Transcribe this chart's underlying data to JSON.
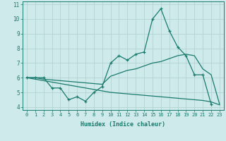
{
  "xlabel": "Humidex (Indice chaleur)",
  "x_values": [
    0,
    1,
    2,
    3,
    4,
    5,
    6,
    7,
    8,
    9,
    10,
    11,
    12,
    13,
    14,
    15,
    16,
    17,
    18,
    19,
    20,
    21,
    22,
    23
  ],
  "line1_y": [
    6.0,
    6.0,
    6.0,
    5.3,
    5.3,
    4.5,
    4.7,
    4.4,
    5.0,
    5.4,
    7.0,
    7.5,
    7.2,
    7.6,
    7.75,
    10.0,
    10.7,
    9.2,
    8.1,
    7.5,
    6.2,
    6.2,
    4.2,
    null
  ],
  "line2_y": [
    6.0,
    6.0,
    5.9,
    5.85,
    5.8,
    5.75,
    5.7,
    5.65,
    5.6,
    5.55,
    6.1,
    6.3,
    6.5,
    6.6,
    6.8,
    7.0,
    7.1,
    7.3,
    7.5,
    7.6,
    7.5,
    6.6,
    6.2,
    4.2
  ],
  "line3_y": [
    6.0,
    5.9,
    5.8,
    5.7,
    5.6,
    5.5,
    5.4,
    5.3,
    5.2,
    5.1,
    5.0,
    4.95,
    4.9,
    4.85,
    4.8,
    4.75,
    4.7,
    4.65,
    4.6,
    4.55,
    4.5,
    4.45,
    4.35,
    4.15
  ],
  "color": "#1a7a6e",
  "bg_color": "#ceeaea",
  "grid_color": "#aed0d0",
  "ylim": [
    3.8,
    11.2
  ],
  "xlim": [
    -0.5,
    23.5
  ],
  "yticks": [
    4,
    5,
    6,
    7,
    8,
    9,
    10,
    11
  ]
}
